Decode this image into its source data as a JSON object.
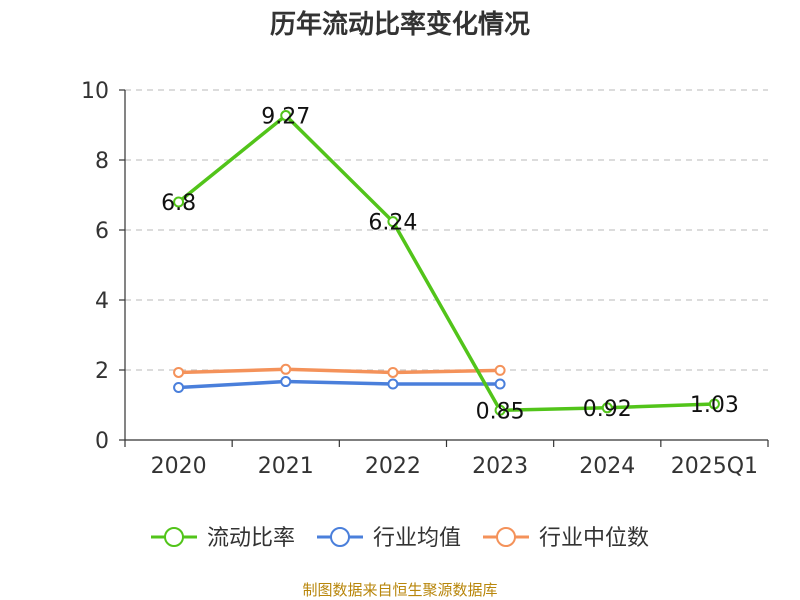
{
  "chart_data": {
    "type": "line",
    "title": "历年流动比率变化情况",
    "xlabel": "",
    "ylabel": "",
    "categories": [
      "2020",
      "2021",
      "2022",
      "2023",
      "2024",
      "2025Q1"
    ],
    "ylim": [
      0,
      10
    ],
    "yticks": [
      "0",
      "2",
      "4",
      "6",
      "8",
      "10"
    ],
    "grid": true,
    "legend_position": "bottom",
    "series": [
      {
        "name": "流动比率",
        "color": "#52c41a",
        "values": [
          6.8,
          9.27,
          6.24,
          0.85,
          0.92,
          1.03
        ],
        "labels": [
          "6.8",
          "9.27",
          "6.24",
          "0.85",
          "0.92",
          "1.03"
        ],
        "show_labels": true
      },
      {
        "name": "行业均值",
        "color": "#4a7fdb",
        "values": [
          1.5,
          1.67,
          1.6,
          1.6,
          null,
          null
        ],
        "show_labels": false
      },
      {
        "name": "行业中位数",
        "color": "#f4925a",
        "values": [
          1.93,
          2.02,
          1.93,
          1.99,
          null,
          null
        ],
        "show_labels": false
      }
    ]
  },
  "footer": {
    "source": "制图数据来自恒生聚源数据库"
  }
}
